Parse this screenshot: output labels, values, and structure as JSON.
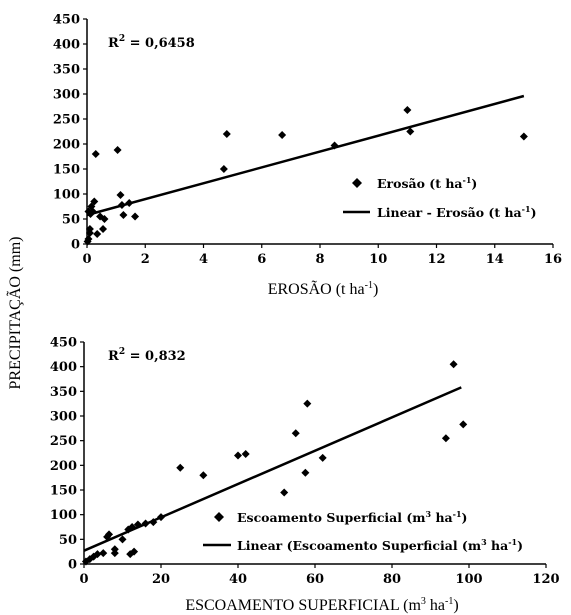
{
  "ylabel_shared": "PRECIPITAÇÃO (mm)",
  "chart_data": [
    {
      "type": "scatter",
      "xlabel": "EROSÃO (t ha",
      "xlabel_sup": "-1",
      "xlabel_end": ")",
      "xlim": [
        0,
        16
      ],
      "ylim": [
        0,
        450
      ],
      "xticks": [
        0,
        2,
        4,
        6,
        8,
        10,
        12,
        14,
        16
      ],
      "yticks": [
        0,
        50,
        100,
        150,
        200,
        250,
        300,
        350,
        400,
        450
      ],
      "r2_label": "R",
      "r2_sup": "2",
      "r2_value": " = 0,6458",
      "legend": [
        {
          "marker": "diamond",
          "text": "Erosão (t ha",
          "sup": "-1",
          "end": ")"
        },
        {
          "marker": "line",
          "text": "Linear - Erosão (t ha",
          "sup": "-1",
          "end": ")"
        }
      ],
      "series": [
        {
          "points": [
            [
              0.02,
              5
            ],
            [
              0.05,
              10
            ],
            [
              0.05,
              65
            ],
            [
              0.1,
              22
            ],
            [
              0.1,
              30
            ],
            [
              0.12,
              60
            ],
            [
              0.15,
              75
            ],
            [
              0.2,
              65
            ],
            [
              0.25,
              85
            ],
            [
              0.3,
              180
            ],
            [
              0.35,
              20
            ],
            [
              0.45,
              55
            ],
            [
              0.55,
              30
            ],
            [
              0.6,
              50
            ],
            [
              1.05,
              188
            ],
            [
              1.15,
              98
            ],
            [
              1.2,
              78
            ],
            [
              1.25,
              58
            ],
            [
              1.45,
              82
            ],
            [
              1.65,
              55
            ],
            [
              4.7,
              150
            ],
            [
              4.8,
              220
            ],
            [
              6.7,
              218
            ],
            [
              8.5,
              197
            ],
            [
              11.0,
              268
            ],
            [
              11.1,
              225
            ],
            [
              15.0,
              215
            ]
          ]
        }
      ],
      "trendline": [
        [
          0,
          58
        ],
        [
          15,
          296
        ]
      ]
    },
    {
      "type": "scatter",
      "xlabel": "ESCOAMENTO SUPERFICIAL (m",
      "xlabel_sup": "3",
      "xlabel_mid": " ha",
      "xlabel_sup2": "-1",
      "xlabel_end": ")",
      "xlim": [
        0,
        120
      ],
      "ylim": [
        0,
        450
      ],
      "xticks": [
        0,
        20,
        40,
        60,
        80,
        100,
        120
      ],
      "yticks": [
        0,
        50,
        100,
        150,
        200,
        250,
        300,
        350,
        400,
        450
      ],
      "r2_label": "R",
      "r2_sup": "2",
      "r2_value": " = 0,832",
      "legend": [
        {
          "marker": "diamond",
          "text": "Escoamento Superficial (m",
          "sup": "3",
          "mid": " ha",
          "sup2": "-1",
          "end": ")"
        },
        {
          "marker": "line",
          "text": "Linear (Escoamento Superficial (m",
          "sup": "3",
          "mid": " ha",
          "sup2": "-1",
          "end": ")"
        }
      ],
      "series": [
        {
          "points": [
            [
              0.5,
              5
            ],
            [
              1.5,
              10
            ],
            [
              2.5,
              15
            ],
            [
              3.5,
              20
            ],
            [
              5,
              22
            ],
            [
              6,
              55
            ],
            [
              6.5,
              60
            ],
            [
              8,
              30
            ],
            [
              8,
              22
            ],
            [
              10,
              50
            ],
            [
              11.5,
              70
            ],
            [
              12,
              20
            ],
            [
              12.5,
              75
            ],
            [
              13,
              25
            ],
            [
              14,
              80
            ],
            [
              16,
              82
            ],
            [
              18,
              85
            ],
            [
              20,
              95
            ],
            [
              25,
              195
            ],
            [
              31,
              180
            ],
            [
              40,
              220
            ],
            [
              42,
              223
            ],
            [
              52,
              145
            ],
            [
              55,
              265
            ],
            [
              57.5,
              185
            ],
            [
              58,
              325
            ],
            [
              62,
              215
            ],
            [
              94,
              255
            ],
            [
              96,
              405
            ],
            [
              98.5,
              283
            ]
          ]
        }
      ],
      "trendline": [
        [
          0,
          27
        ],
        [
          98,
          358
        ]
      ]
    }
  ]
}
